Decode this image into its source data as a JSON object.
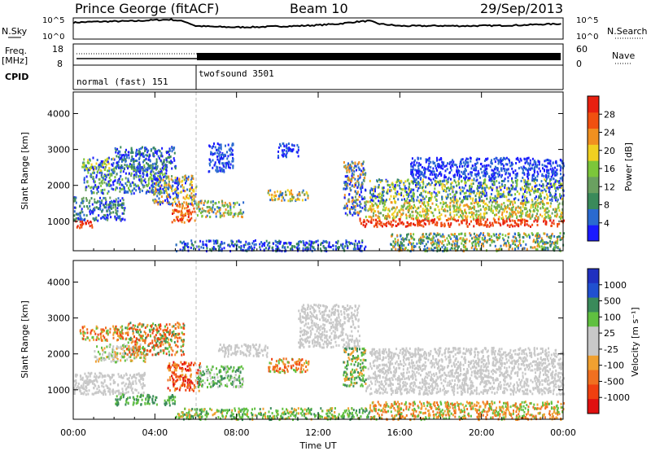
{
  "header": {
    "station": "Prince George (fitACF)",
    "beam": "Beam 10",
    "date": "29/Sep/2013"
  },
  "colors": {
    "power_scale": [
      "#1a1aff",
      "#2a6ad0",
      "#3a8a5a",
      "#6aa060",
      "#7cc63a",
      "#f0d020",
      "#f09020",
      "#f05010",
      "#e82010"
    ],
    "velocity_scale": [
      "#e01010",
      "#f04010",
      "#f07020",
      "#f0a030",
      "#c8c8c8",
      "#c8c8c8",
      "#60c040",
      "#3a8a5a",
      "#2050d0",
      "#2030c0"
    ],
    "gray_scatter": "#c8c8c8"
  },
  "chart_data": [
    {
      "type": "line",
      "panel": "noise",
      "left_label": "N.Sky",
      "right_label": "N.Search",
      "left_ticks": [
        "10^5",
        "10^0"
      ],
      "right_ticks": [
        "10^5",
        "10^0"
      ],
      "x_hours": [
        0,
        1,
        2,
        3,
        4,
        4.8,
        5.5,
        6,
        7,
        8,
        9,
        10,
        11,
        12,
        13,
        14,
        14.5,
        15,
        16,
        17,
        18,
        19,
        20,
        21,
        22,
        23,
        24
      ],
      "sky_level": [
        0.78,
        0.82,
        0.84,
        0.85,
        0.9,
        0.92,
        0.82,
        0.62,
        0.58,
        0.56,
        0.57,
        0.6,
        0.62,
        0.66,
        0.72,
        0.83,
        0.86,
        0.72,
        0.62,
        0.62,
        0.63,
        0.62,
        0.63,
        0.64,
        0.66,
        0.7,
        0.72
      ],
      "ylim": [
        0,
        1
      ]
    },
    {
      "type": "line",
      "panel": "frequency",
      "left_label": "Freq.",
      "left_unit": "[MHz]",
      "right_label": "Nave",
      "left_ticks": [
        18,
        8
      ],
      "right_ticks": [
        60,
        0
      ],
      "cpid_label": "CPID",
      "modes": [
        {
          "label": "normal (fast) 151",
          "start_hour": 0,
          "end_hour": 6
        },
        {
          "label": "twofsound 3501",
          "start_hour": 6,
          "end_hour": 24
        }
      ],
      "ylim": [
        8,
        18
      ]
    },
    {
      "type": "heatmap",
      "panel": "power",
      "ylabel": "Slant Range [km]",
      "yticks": [
        1000,
        2000,
        3000,
        4000
      ],
      "ylim": [
        180,
        4600
      ],
      "colorbar_label": "Power [dB]",
      "colorbar_ticks": [
        4,
        8,
        12,
        16,
        20,
        24,
        28
      ],
      "colorbar_range": [
        0,
        32
      ],
      "scatter_regions": [
        {
          "t0": 0.0,
          "t1": 0.9,
          "r0": 850,
          "r1": 1050,
          "mix": [
            7,
            8
          ]
        },
        {
          "t0": 0.0,
          "t1": 2.5,
          "r0": 1050,
          "r1": 1700,
          "mix": [
            0,
            1,
            2,
            3
          ]
        },
        {
          "t0": 0.5,
          "t1": 4.6,
          "r0": 1800,
          "r1": 2600,
          "mix": [
            0,
            1,
            3,
            4
          ]
        },
        {
          "t0": 0.4,
          "t1": 2.2,
          "r0": 2450,
          "r1": 2800,
          "mix": [
            0,
            1,
            4,
            5
          ]
        },
        {
          "t0": 2.0,
          "t1": 5.0,
          "r0": 2500,
          "r1": 3100,
          "mix": [
            0,
            1,
            2
          ]
        },
        {
          "t0": 3.8,
          "t1": 6.0,
          "r0": 1500,
          "r1": 2300,
          "mix": [
            0,
            1,
            3,
            5,
            6
          ]
        },
        {
          "t0": 4.8,
          "t1": 6.0,
          "r0": 1000,
          "r1": 1500,
          "mix": [
            6,
            7,
            8
          ]
        },
        {
          "t0": 6.0,
          "t1": 8.3,
          "r0": 1150,
          "r1": 1600,
          "mix": [
            1,
            3,
            4,
            6
          ]
        },
        {
          "t0": 6.6,
          "t1": 7.8,
          "r0": 2400,
          "r1": 3200,
          "mix": [
            0,
            1
          ]
        },
        {
          "t0": 9.5,
          "t1": 11.5,
          "r0": 1600,
          "r1": 1900,
          "mix": [
            1,
            3,
            5,
            6
          ]
        },
        {
          "t0": 10.0,
          "t1": 11.0,
          "r0": 2800,
          "r1": 3200,
          "mix": [
            0,
            1
          ]
        },
        {
          "t0": 13.2,
          "t1": 14.3,
          "r0": 1200,
          "r1": 2700,
          "mix": [
            0,
            1,
            3,
            6
          ]
        },
        {
          "t0": 14.0,
          "t1": 24.0,
          "r0": 880,
          "r1": 1100,
          "mix": [
            7,
            8
          ]
        },
        {
          "t0": 14.3,
          "t1": 24.0,
          "r0": 1100,
          "r1": 1600,
          "mix": [
            3,
            4,
            5,
            6
          ]
        },
        {
          "t0": 14.5,
          "t1": 24.0,
          "r0": 1600,
          "r1": 2200,
          "mix": [
            0,
            1,
            2,
            4,
            5
          ]
        },
        {
          "t0": 16.5,
          "t1": 24.0,
          "r0": 2200,
          "r1": 2800,
          "mix": [
            0,
            1
          ]
        },
        {
          "t0": 5.0,
          "t1": 14.3,
          "r0": 200,
          "r1": 500,
          "mix": [
            0,
            1,
            2
          ]
        },
        {
          "t0": 15.5,
          "t1": 24.0,
          "r0": 200,
          "r1": 700,
          "mix": [
            1,
            2,
            4,
            6
          ]
        }
      ]
    },
    {
      "type": "heatmap",
      "panel": "velocity",
      "ylabel": "Slant Range [km]",
      "yticks": [
        1000,
        2000,
        3000,
        4000
      ],
      "ylim": [
        180,
        4600
      ],
      "xlabel": "Time UT",
      "xticks": [
        "00:00",
        "04:00",
        "08:00",
        "12:00",
        "16:00",
        "20:00",
        "00:00"
      ],
      "colorbar_label": "Velocity [m s⁻¹]",
      "colorbar_ticks": [
        1000,
        500,
        100,
        25,
        -25,
        -100,
        -500,
        -1000
      ],
      "scatter_regions": [
        {
          "t0": 0.0,
          "t1": 3.5,
          "r0": 900,
          "r1": 1500,
          "mix": [
            4,
            4,
            4,
            5
          ]
        },
        {
          "t0": 0.3,
          "t1": 2.4,
          "r0": 2400,
          "r1": 2800,
          "mix": [
            1,
            2,
            3,
            6
          ]
        },
        {
          "t0": 1.0,
          "t1": 3.5,
          "r0": 1800,
          "r1": 2300,
          "mix": [
            4,
            4,
            3,
            6
          ]
        },
        {
          "t0": 2.5,
          "t1": 5.4,
          "r0": 2000,
          "r1": 2900,
          "mix": [
            1,
            2,
            3,
            6,
            7
          ]
        },
        {
          "t0": 4.6,
          "t1": 6.2,
          "r0": 1000,
          "r1": 1800,
          "mix": [
            0,
            1,
            2,
            3
          ]
        },
        {
          "t0": 6.0,
          "t1": 8.3,
          "r0": 1100,
          "r1": 1700,
          "mix": [
            6,
            7,
            4
          ]
        },
        {
          "t0": 2.0,
          "t1": 5.0,
          "r0": 600,
          "r1": 900,
          "mix": [
            6,
            7
          ]
        },
        {
          "t0": 7.0,
          "t1": 9.5,
          "r0": 1950,
          "r1": 2300,
          "mix": [
            4,
            4
          ]
        },
        {
          "t0": 9.5,
          "t1": 11.5,
          "r0": 1500,
          "r1": 1900,
          "mix": [
            1,
            2,
            3,
            6
          ]
        },
        {
          "t0": 11.0,
          "t1": 14.0,
          "r0": 2200,
          "r1": 3400,
          "mix": [
            4,
            4,
            4
          ]
        },
        {
          "t0": 13.2,
          "t1": 14.3,
          "r0": 1100,
          "r1": 2200,
          "mix": [
            6,
            7,
            3
          ]
        },
        {
          "t0": 14.3,
          "t1": 24.0,
          "r0": 900,
          "r1": 1700,
          "mix": [
            4,
            4,
            4,
            5
          ]
        },
        {
          "t0": 14.5,
          "t1": 24.0,
          "r0": 1700,
          "r1": 2200,
          "mix": [
            4,
            4,
            4
          ]
        },
        {
          "t0": 5.0,
          "t1": 14.5,
          "r0": 200,
          "r1": 520,
          "mix": [
            3,
            6,
            6,
            7
          ]
        },
        {
          "t0": 14.5,
          "t1": 24.0,
          "r0": 200,
          "r1": 700,
          "mix": [
            2,
            3,
            6
          ]
        }
      ]
    }
  ]
}
